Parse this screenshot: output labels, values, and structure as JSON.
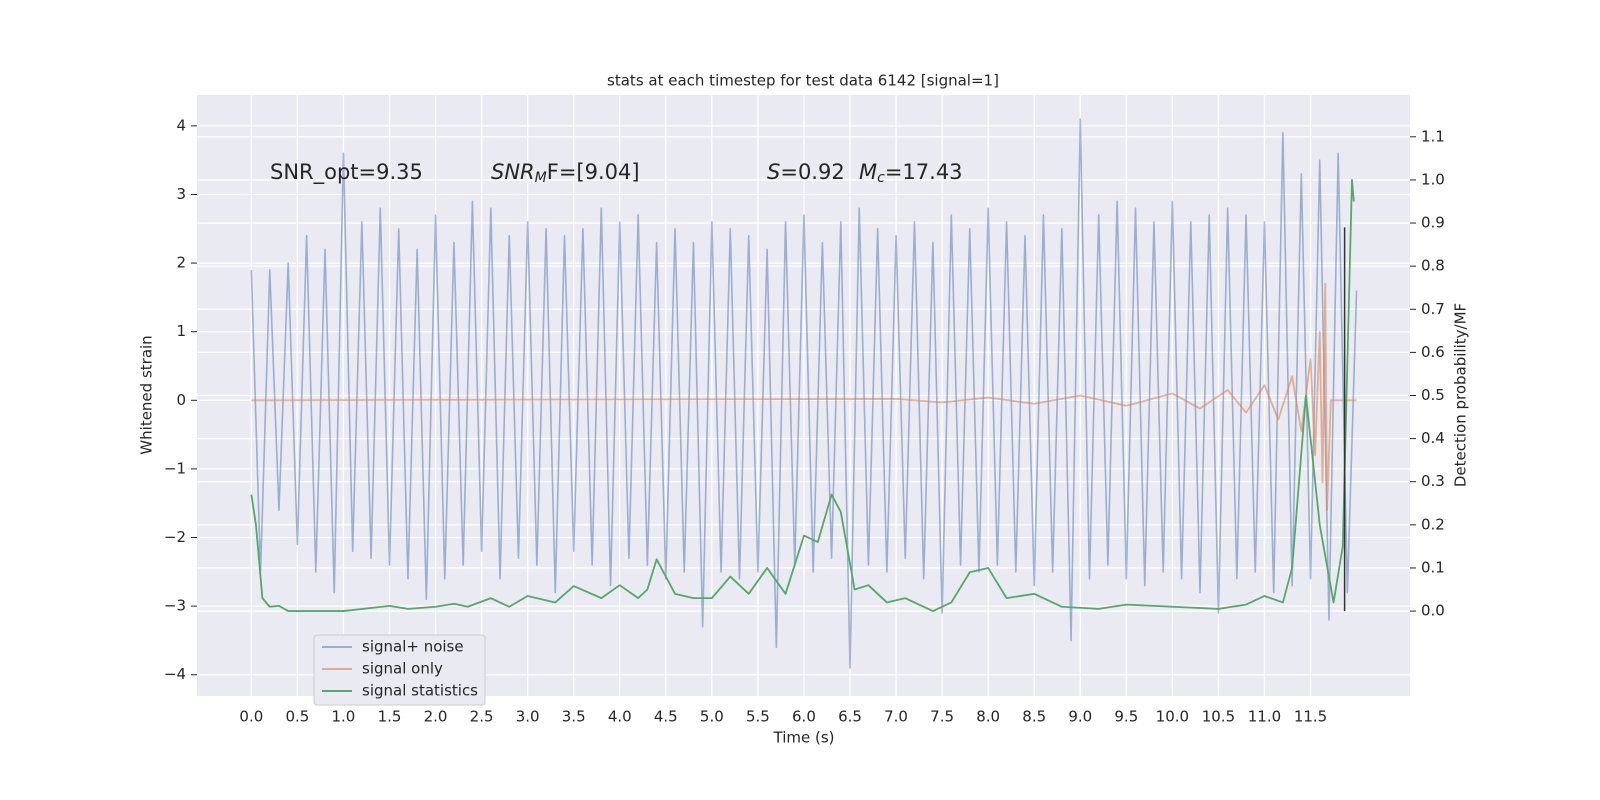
{
  "chart_data": {
    "type": "line",
    "title": "stats at each timestep for test data 6142 [signal=1]",
    "x_label": "Time (s)",
    "y_label": "Whitened strain",
    "y2_label": "Detection probability/MF",
    "annotations": [
      {
        "base": "SNR_opt=9.35"
      },
      {
        "base": "SNR",
        "sub": "M",
        "rest": "F=[9.04]",
        "italic": true
      },
      {
        "base": "S",
        "rest": "=0.92",
        "italic": true
      },
      {
        "base": "M",
        "sub": "c",
        "rest": "=17.43",
        "italic": true
      }
    ],
    "xlim": [
      -0.59,
      12.58
    ],
    "ylim": [
      -4.31,
      4.45
    ],
    "y2lim": [
      -0.197,
      1.197
    ],
    "xticks": [
      {
        "value": 0,
        "label": "0.0"
      },
      0.5,
      {
        "value": 1,
        "label": "1.0"
      },
      1.5,
      {
        "value": 2,
        "label": "2.0"
      },
      2.5,
      {
        "value": 3,
        "label": "3.0"
      },
      3.5,
      {
        "value": 4,
        "label": "4.0"
      },
      4.5,
      {
        "value": 5,
        "label": "5.0"
      },
      5.5,
      {
        "value": 6,
        "label": "6.0"
      },
      6.5,
      {
        "value": 7,
        "label": "7.0"
      },
      7.5,
      {
        "value": 8,
        "label": "8.0"
      },
      8.5,
      {
        "value": 9,
        "label": "9.0"
      },
      9.5,
      {
        "value": 10,
        "label": "10.0"
      },
      10.5,
      {
        "value": 11,
        "label": "11.0"
      },
      11.5
    ],
    "yticks": [
      {
        "value": -4,
        "label": "−4"
      },
      {
        "value": -3,
        "label": "−3"
      },
      {
        "value": -2,
        "label": "−2"
      },
      {
        "value": -1,
        "label": "−1"
      },
      0,
      1,
      2,
      3,
      4
    ],
    "y2ticks": [
      {
        "value": 0,
        "label": "0.0"
      },
      0.1,
      0.2,
      0.3,
      0.4,
      0.5,
      0.6,
      0.7,
      0.8,
      0.9,
      {
        "value": 1,
        "label": "1.0"
      },
      1.1
    ],
    "grid": true,
    "legend": "lower left",
    "series": [
      {
        "name": "signal+ noise",
        "color": "#4c72b0",
        "opacity": 0.5,
        "x": [
          0,
          0.1,
          0.2,
          0.3,
          0.4,
          0.5,
          0.6,
          0.7,
          0.8,
          0.9,
          1,
          1.1,
          1.2,
          1.3,
          1.4,
          1.5,
          1.6,
          1.7,
          1.8,
          1.9,
          2,
          2.1,
          2.2,
          2.3,
          2.4,
          2.5,
          2.6,
          2.7,
          2.8,
          2.9,
          3,
          3.1,
          3.2,
          3.3,
          3.4,
          3.5,
          3.6,
          3.7,
          3.8,
          3.9,
          4,
          4.1,
          4.2,
          4.3,
          4.4,
          4.5,
          4.6,
          4.7,
          4.8,
          4.9,
          5,
          5.1,
          5.2,
          5.3,
          5.4,
          5.5,
          5.6,
          5.7,
          5.8,
          5.9,
          6,
          6.1,
          6.2,
          6.3,
          6.4,
          6.5,
          6.6,
          6.7,
          6.8,
          6.9,
          7,
          7.1,
          7.2,
          7.3,
          7.4,
          7.5,
          7.6,
          7.7,
          7.8,
          7.9,
          8,
          8.1,
          8.2,
          8.3,
          8.4,
          8.5,
          8.6,
          8.7,
          8.8,
          8.9,
          9,
          9.1,
          9.2,
          9.3,
          9.4,
          9.5,
          9.6,
          9.7,
          9.8,
          9.9,
          10,
          10.1,
          10.2,
          10.3,
          10.4,
          10.5,
          10.6,
          10.7,
          10.8,
          10.9,
          11,
          11.1,
          11.2,
          11.3,
          11.4,
          11.5,
          11.6,
          11.7,
          11.8,
          11.9,
          12
        ],
        "values": [
          1.9,
          -2.5,
          1.9,
          -1.6,
          2.0,
          -2.1,
          2.4,
          -2.5,
          2.2,
          -2.8,
          3.6,
          -2.2,
          2.6,
          -2.3,
          2.8,
          -2.4,
          2.5,
          -2.6,
          2.2,
          -2.9,
          2.7,
          -2.6,
          2.3,
          -2.4,
          2.9,
          -2.2,
          2.8,
          -2.6,
          2.4,
          -2.3,
          2.6,
          -2.4,
          2.5,
          -2.8,
          2.4,
          -2.2,
          2.5,
          -2.4,
          2.8,
          -2.7,
          2.6,
          -2.3,
          2.7,
          -2.4,
          2.3,
          -2.6,
          2.5,
          -2.5,
          2.3,
          -3.3,
          2.6,
          -2.5,
          2.5,
          -2.6,
          2.4,
          -2.5,
          2.2,
          -3.6,
          2.6,
          -2.4,
          2.7,
          -2.5,
          2.3,
          -2.3,
          2.6,
          -3.9,
          2.8,
          -2.4,
          2.5,
          -2.5,
          2.4,
          -2.3,
          2.6,
          -2.6,
          2.3,
          -3.1,
          2.7,
          -2.4,
          2.5,
          -2.5,
          2.8,
          -2.4,
          2.6,
          -2.5,
          2.4,
          -2.7,
          2.7,
          -2.5,
          2.5,
          -3.5,
          4.1,
          -2.6,
          2.7,
          -2.4,
          2.9,
          -2.6,
          2.8,
          -2.7,
          2.6,
          -2.5,
          2.9,
          -2.6,
          2.6,
          -2.8,
          2.7,
          -3.1,
          2.8,
          -2.6,
          2.7,
          -2.5,
          2.6,
          -2.8,
          3.9,
          -2.7,
          3.3,
          -2.6,
          3.5,
          -3.2,
          3.6,
          -2.8,
          1.6
        ]
      },
      {
        "name": "signal only",
        "color": "#dd8452",
        "opacity": 0.6,
        "x": [
          0,
          7.0,
          7.5,
          8.0,
          8.5,
          9.0,
          9.5,
          10.0,
          10.3,
          10.6,
          10.8,
          11.0,
          11.15,
          11.3,
          11.4,
          11.5,
          11.55,
          11.6,
          11.63,
          11.66,
          11.68,
          11.72,
          12.0
        ],
        "values": [
          0,
          0.02,
          -0.03,
          0.04,
          -0.05,
          0.07,
          -0.08,
          0.1,
          -0.12,
          0.15,
          -0.18,
          0.22,
          -0.28,
          0.35,
          -0.45,
          0.6,
          -0.8,
          1.0,
          -1.2,
          1.7,
          -1.6,
          0,
          0
        ]
      },
      {
        "name": "signal statistics",
        "color": "#55a868",
        "opacity": 1,
        "axis": "y2",
        "x": [
          0,
          0.05,
          0.12,
          0.2,
          0.3,
          0.4,
          0.6,
          1.0,
          1.5,
          1.7,
          2.0,
          2.2,
          2.35,
          2.6,
          2.8,
          3.0,
          3.3,
          3.5,
          3.8,
          4.0,
          4.2,
          4.3,
          4.4,
          4.6,
          4.8,
          5.0,
          5.2,
          5.4,
          5.6,
          5.8,
          6.0,
          6.15,
          6.3,
          6.4,
          6.55,
          6.7,
          6.9,
          7.1,
          7.4,
          7.6,
          7.8,
          8.0,
          8.2,
          8.5,
          8.8,
          9.2,
          9.5,
          10.0,
          10.5,
          10.8,
          11.0,
          11.2,
          11.3,
          11.45,
          11.6,
          11.75,
          11.85,
          11.95,
          11.97
        ],
        "values": [
          0.27,
          0.2,
          0.03,
          0.01,
          0.012,
          0,
          0,
          0,
          0.012,
          0.005,
          0.01,
          0.017,
          0.01,
          0.03,
          0.01,
          0.035,
          0.02,
          0.058,
          0.03,
          0.06,
          0.03,
          0.05,
          0.12,
          0.04,
          0.03,
          0.03,
          0.08,
          0.04,
          0.1,
          0.04,
          0.175,
          0.16,
          0.27,
          0.23,
          0.05,
          0.06,
          0.02,
          0.03,
          0,
          0.02,
          0.09,
          0.1,
          0.03,
          0.04,
          0.01,
          0.005,
          0.015,
          0.01,
          0.005,
          0.015,
          0.035,
          0.02,
          0.1,
          0.5,
          0.2,
          0.02,
          0.15,
          1.0,
          0.95
        ]
      }
    ],
    "marker": {
      "x": 11.87,
      "y2": [
        0,
        0.89
      ],
      "color": "#333333"
    }
  }
}
